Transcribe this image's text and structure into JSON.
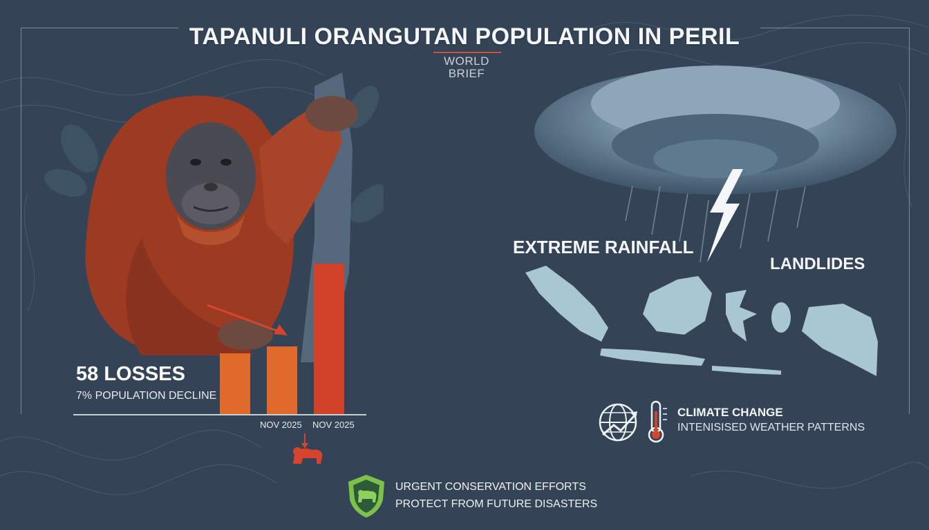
{
  "header": {
    "title": "TAPANULI ORANGUTAN POPULATION IN PERIL",
    "brand_line1": "WORLD",
    "brand_line2": "BRIEF"
  },
  "stats": {
    "losses": "58 LOSSES",
    "decline": "7% POPULATION DECLINE"
  },
  "bar_chart": {
    "bars": [
      {
        "value": 88,
        "color": "#e06a2c"
      },
      {
        "value": 98,
        "color": "#e06a2c"
      },
      {
        "value": 218,
        "color": "#d0432a"
      }
    ],
    "labels": [
      "NOV 2025",
      "NOV 2025"
    ]
  },
  "impacts": {
    "rainfall": "EXTREME RAINFALL",
    "landslides": "LANDLIDES"
  },
  "climate": {
    "title": "CLIMATE CHANGE",
    "subtitle": "INTENISISED WEATHER PATTERNS"
  },
  "conservation": {
    "line1": "URGENT CONSERVATION EFFORTS",
    "line2": "PROTECT FROM FUTURE DISASTERS"
  },
  "colors": {
    "background": "#344456",
    "accent_orange": "#e06a2c",
    "accent_red": "#d0432a",
    "orangutan": "#9c3a22",
    "map": "#a9c6d3",
    "shield": "#7cc24a"
  }
}
